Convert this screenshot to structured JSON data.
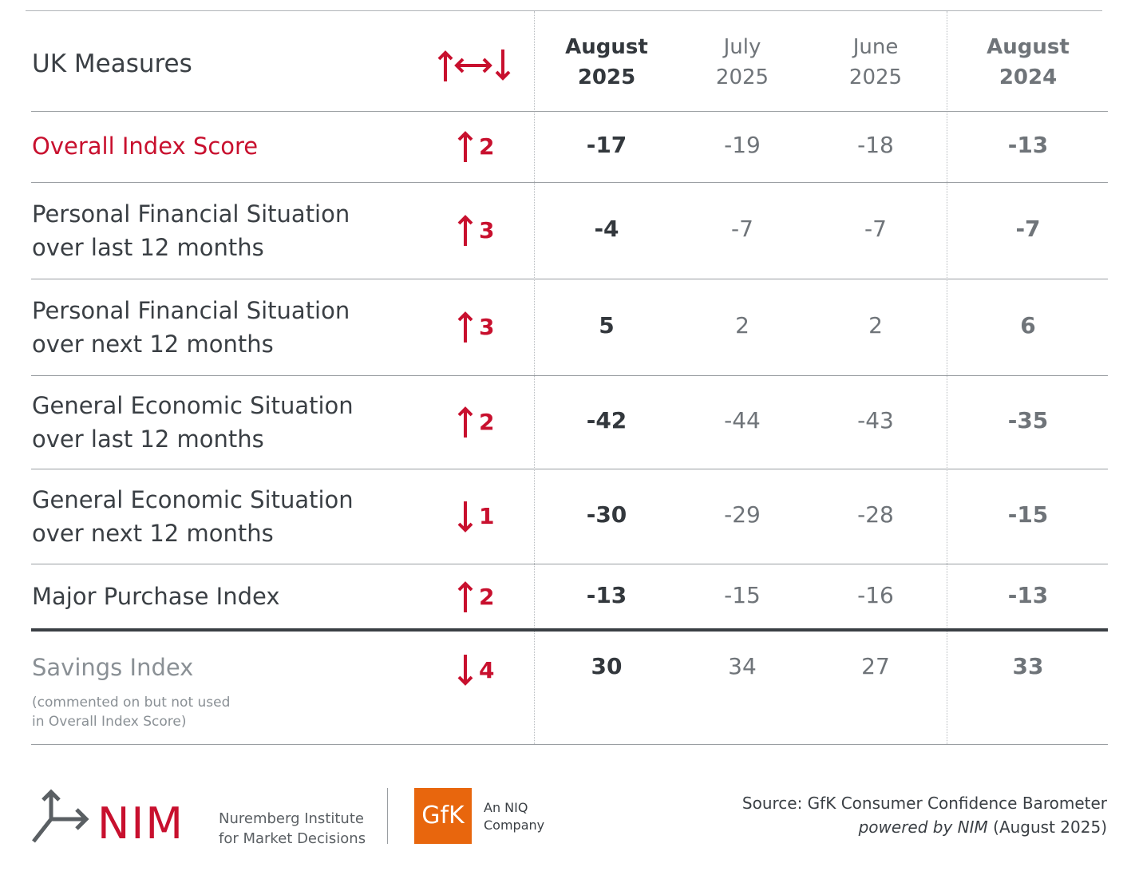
{
  "header": {
    "title": "UK Measures",
    "change_icon": "up-leftright-down-arrows-icon",
    "columns": [
      {
        "line1": "August",
        "line2": "2025"
      },
      {
        "line1": "July",
        "line2": "2025"
      },
      {
        "line1": "June",
        "line2": "2025"
      },
      {
        "line1": "August",
        "line2": "2024"
      }
    ]
  },
  "rows": [
    {
      "label1": "Overall Index Score",
      "label2": "",
      "direction": "up",
      "change": "2",
      "values": [
        "-17",
        "-19",
        "-18",
        "-13"
      ]
    },
    {
      "label1": "Personal Financial Situation",
      "label2": "over last 12 months",
      "direction": "up",
      "change": "3",
      "values": [
        "-4",
        "-7",
        "-7",
        "-7"
      ]
    },
    {
      "label1": "Personal Financial Situation",
      "label2": "over next 12 months",
      "direction": "up",
      "change": "3",
      "values": [
        "5",
        "2",
        "2",
        "6"
      ]
    },
    {
      "label1": "General Economic Situation",
      "label2": "over last 12 months",
      "direction": "up",
      "change": "2",
      "values": [
        "-42",
        "-44",
        "-43",
        "-35"
      ]
    },
    {
      "label1": "General Economic Situation",
      "label2": "over next 12 months",
      "direction": "down",
      "change": "1",
      "values": [
        "-30",
        "-29",
        "-28",
        "-15"
      ]
    },
    {
      "label1": "Major Purchase Index",
      "label2": "",
      "direction": "up",
      "change": "2",
      "values": [
        "-13",
        "-15",
        "-16",
        "-13"
      ]
    }
  ],
  "savings": {
    "label": "Savings Index",
    "note1": "(commented on but not used",
    "note2": "in Overall Index Score)",
    "direction": "down",
    "change": "4",
    "values": [
      "30",
      "34",
      "27",
      "33"
    ]
  },
  "footer": {
    "nim_logo": "NIM",
    "nim_line1": "Nuremberg Institute",
    "nim_line2": "for Market Decisions",
    "gfk_logo": "GfK",
    "gfk_line1": "An NIQ",
    "gfk_line2": "Company",
    "source_line1": "Source: GfK Consumer Confidence Barometer",
    "source_italic": "powered by NIM",
    "source_suffix": " (August 2025)"
  },
  "colors": {
    "accent": "#c8102e",
    "gfk_orange": "#e8660d",
    "text": "#3a3f44",
    "muted": "#6f7479"
  }
}
